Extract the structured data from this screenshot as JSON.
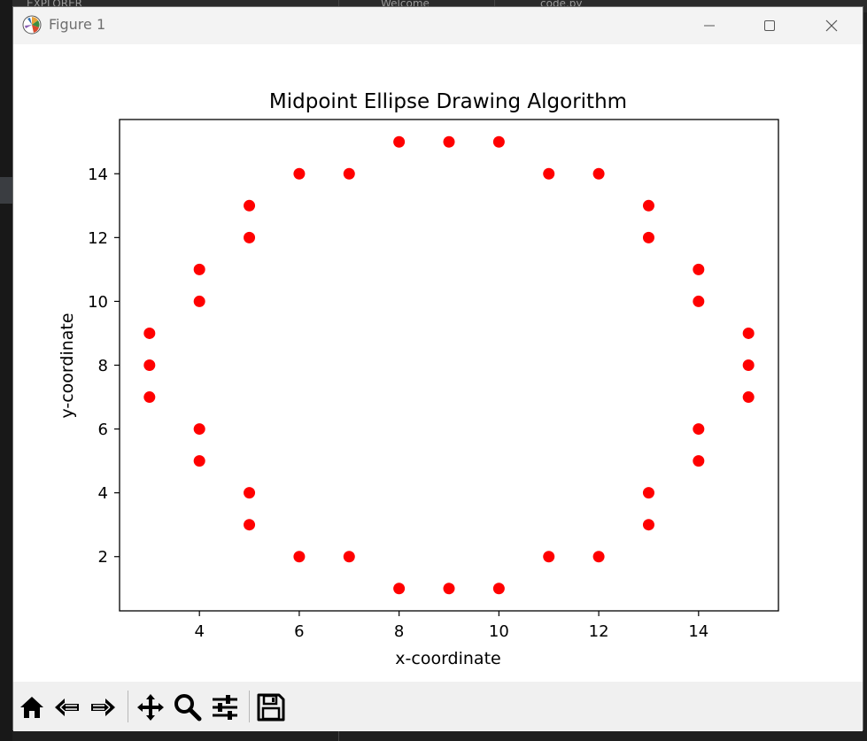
{
  "window": {
    "title": "Figure 1",
    "controls": [
      "minimize",
      "maximize",
      "close"
    ]
  },
  "background_tabs": [
    "EXPLORER",
    "Welcome",
    "code.py"
  ],
  "toolbar": {
    "buttons": [
      "home-icon",
      "back-icon",
      "forward-icon",
      "pan-icon",
      "zoom-icon",
      "configure-subplots-icon",
      "save-icon"
    ]
  },
  "colors": {
    "marker": "#ff0000",
    "axes": "#000000",
    "figure_bg": "#ffffff"
  },
  "chart_data": {
    "type": "scatter",
    "title": "Midpoint Ellipse Drawing Algorithm",
    "xlabel": "x-coordinate",
    "ylabel": "y-coordinate",
    "xlim": [
      2.4,
      15.6
    ],
    "ylim": [
      0.3,
      15.7
    ],
    "xticks": [
      4,
      6,
      8,
      10,
      12,
      14
    ],
    "yticks": [
      2,
      4,
      6,
      8,
      10,
      12,
      14
    ],
    "grid": false,
    "series": [
      {
        "color": "#ff0000",
        "points": [
          [
            8,
            15
          ],
          [
            9,
            15
          ],
          [
            10,
            15
          ],
          [
            6,
            14
          ],
          [
            7,
            14
          ],
          [
            11,
            14
          ],
          [
            12,
            14
          ],
          [
            5,
            13
          ],
          [
            13,
            13
          ],
          [
            5,
            12
          ],
          [
            13,
            12
          ],
          [
            4,
            11
          ],
          [
            14,
            11
          ],
          [
            4,
            10
          ],
          [
            14,
            10
          ],
          [
            3,
            9
          ],
          [
            15,
            9
          ],
          [
            3,
            8
          ],
          [
            15,
            8
          ],
          [
            3,
            7
          ],
          [
            15,
            7
          ],
          [
            4,
            6
          ],
          [
            14,
            6
          ],
          [
            4,
            5
          ],
          [
            14,
            5
          ],
          [
            5,
            4
          ],
          [
            13,
            4
          ],
          [
            5,
            3
          ],
          [
            13,
            3
          ],
          [
            6,
            2
          ],
          [
            7,
            2
          ],
          [
            11,
            2
          ],
          [
            12,
            2
          ],
          [
            8,
            1
          ],
          [
            9,
            1
          ],
          [
            10,
            1
          ]
        ]
      }
    ]
  }
}
